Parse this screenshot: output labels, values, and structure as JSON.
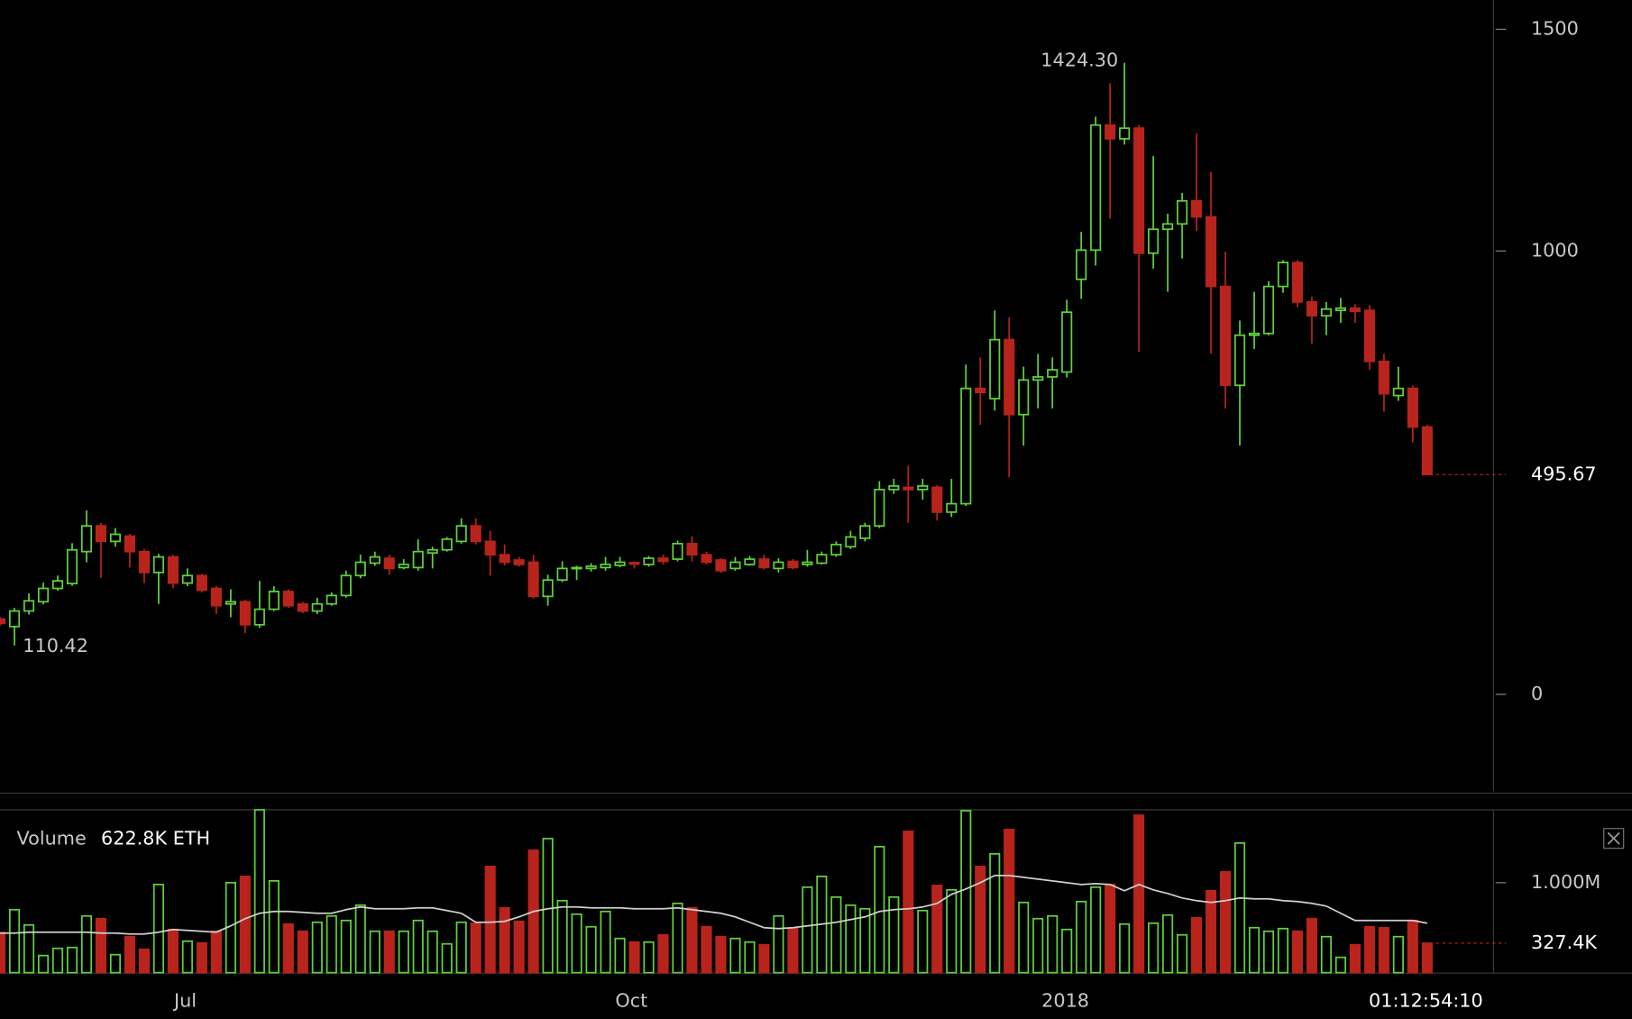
{
  "chart_data": {
    "type": "candlestick",
    "xlim": [
      0,
      103.6
    ],
    "xticks": [
      {
        "value": 12.85,
        "label": "Jul"
      },
      {
        "value": 43.8,
        "label": "Oct"
      },
      {
        "value": 73.9,
        "label": "2018"
      }
    ],
    "ylim": [
      -218,
      1566
    ],
    "yticks": [
      0,
      1000,
      1500
    ],
    "up_color": "#5fd33a",
    "down_color": "#b8241c",
    "open": [
      170,
      153,
      188,
      209,
      239,
      250,
      322,
      380,
      345,
      357,
      322,
      275,
      310,
      251,
      268,
      239,
      204,
      209,
      157,
      192,
      232,
      204,
      188,
      204,
      223,
      268,
      296,
      307,
      286,
      286,
      319,
      326,
      345,
      380,
      345,
      315,
      303,
      298,
      221,
      258,
      284,
      284,
      286,
      291,
      297,
      293,
      307,
      305,
      340,
      315,
      303,
      284,
      293,
      305,
      284,
      300,
      293,
      296,
      315,
      333,
      352,
      380,
      462,
      467,
      462,
      467,
      411,
      430,
      690,
      667,
      800,
      631,
      709,
      716,
      727,
      936,
      1002,
      1284,
      1253,
      1277,
      995,
      1049,
      1061,
      1113,
      1077,
      920,
      697,
      810,
      814,
      920,
      974,
      885,
      854,
      866,
      871,
      866,
      751,
      674,
      690,
      603
    ],
    "high": [
      175,
      195,
      228,
      252,
      268,
      341,
      415,
      387,
      375,
      362,
      328,
      317,
      315,
      284,
      272,
      244,
      237,
      213,
      256,
      244,
      237,
      209,
      218,
      230,
      279,
      315,
      322,
      315,
      305,
      350,
      333,
      355,
      397,
      397,
      369,
      338,
      310,
      315,
      270,
      300,
      290,
      296,
      310,
      310,
      300,
      312,
      315,
      347,
      357,
      322,
      307,
      310,
      312,
      315,
      307,
      305,
      326,
      322,
      345,
      369,
      387,
      481,
      486,
      516,
      486,
      472,
      486,
      744,
      760,
      866,
      850,
      739,
      768,
      760,
      890,
      1043,
      1303,
      1378,
      1424.3,
      1284,
      1214,
      1084,
      1131,
      1265,
      1178,
      998,
      843,
      908,
      932,
      979,
      979,
      897,
      885,
      894,
      880,
      878,
      768,
      739,
      697,
      608
    ],
    "low": [
      155,
      110.42,
      180,
      203,
      234,
      245,
      298,
      263,
      333,
      286,
      251,
      204,
      239,
      244,
      230,
      181,
      174,
      138,
      150,
      188,
      195,
      183,
      181,
      200,
      218,
      262,
      290,
      270,
      282,
      279,
      284,
      322,
      340,
      338,
      268,
      291,
      288,
      216,
      200,
      253,
      258,
      277,
      279,
      287,
      284,
      288,
      293,
      300,
      300,
      293,
      274,
      279,
      290,
      282,
      275,
      282,
      288,
      293,
      310,
      328,
      345,
      375,
      452,
      387,
      439,
      392,
      400,
      425,
      608,
      640,
      490,
      561,
      645,
      645,
      715,
      892,
      967,
      1073,
      1240,
      772,
      960,
      908,
      983,
      1045,
      768,
      645,
      561,
      779,
      810,
      906,
      873,
      791,
      810,
      838,
      838,
      732,
      638,
      662,
      568,
      495.67
    ],
    "close": [
      160,
      188,
      211,
      239,
      256,
      326,
      380,
      345,
      361,
      322,
      275,
      310,
      251,
      268,
      235,
      200,
      209,
      157,
      192,
      232,
      200,
      188,
      204,
      223,
      268,
      298,
      310,
      284,
      293,
      322,
      326,
      350,
      380,
      345,
      315,
      298,
      293,
      221,
      258,
      284,
      286,
      289,
      293,
      298,
      294,
      307,
      300,
      340,
      315,
      298,
      279,
      298,
      305,
      286,
      298,
      286,
      298,
      315,
      338,
      355,
      380,
      462,
      470,
      462,
      470,
      411,
      430,
      690,
      681,
      800,
      631,
      709,
      716,
      732,
      862,
      1002,
      1284,
      1253,
      1277,
      995,
      1049,
      1061,
      1113,
      1077,
      920,
      697,
      810,
      814,
      920,
      974,
      885,
      854,
      869,
      871,
      864,
      751,
      678,
      690,
      603,
      495.67
    ],
    "annotations": [
      {
        "value": 1424.3,
        "label": "1424.30"
      },
      {
        "value": 110.42,
        "label": "110.42"
      }
    ],
    "last_price": {
      "value": 495.67,
      "label": "495.67"
    },
    "volume_label": "Volume",
    "volume_readout": "622.8K ETH",
    "vlim": [
      0,
      1810000
    ],
    "vticks": [
      {
        "value": 1000000,
        "label": "1.000M"
      }
    ],
    "ma_color": "#cfcfcf",
    "volume": [
      445000,
      700000,
      530000,
      190000,
      270000,
      280000,
      630000,
      600000,
      200000,
      400000,
      260000,
      980000,
      480000,
      350000,
      330000,
      460000,
      1000000,
      1070000,
      1810000,
      1020000,
      540000,
      460000,
      560000,
      630000,
      580000,
      750000,
      460000,
      460000,
      460000,
      580000,
      460000,
      320000,
      560000,
      550000,
      1180000,
      720000,
      570000,
      1360000,
      1490000,
      800000,
      650000,
      510000,
      680000,
      380000,
      340000,
      340000,
      420000,
      770000,
      720000,
      510000,
      400000,
      380000,
      340000,
      310000,
      630000,
      490000,
      950000,
      1070000,
      840000,
      750000,
      710000,
      1400000,
      840000,
      1570000,
      690000,
      970000,
      920000,
      1800000,
      1180000,
      1320000,
      1590000,
      780000,
      600000,
      630000,
      480000,
      790000,
      950000,
      980000,
      540000,
      1750000,
      550000,
      640000,
      420000,
      610000,
      910000,
      1120000,
      1440000,
      500000,
      460000,
      490000,
      460000,
      600000,
      400000,
      170000,
      310000,
      510000,
      500000,
      400000,
      580000,
      327400
    ],
    "volume_ma": [
      440000,
      440000,
      450000,
      450000,
      450000,
      450000,
      450000,
      440000,
      440000,
      430000,
      430000,
      450000,
      480000,
      470000,
      460000,
      450000,
      520000,
      600000,
      660000,
      680000,
      680000,
      670000,
      660000,
      660000,
      700000,
      730000,
      710000,
      710000,
      710000,
      720000,
      720000,
      690000,
      660000,
      560000,
      560000,
      570000,
      620000,
      680000,
      710000,
      730000,
      730000,
      720000,
      720000,
      720000,
      710000,
      710000,
      710000,
      720000,
      700000,
      680000,
      660000,
      620000,
      560000,
      500000,
      490000,
      500000,
      520000,
      540000,
      560000,
      590000,
      620000,
      680000,
      700000,
      710000,
      730000,
      770000,
      870000,
      930000,
      1000000,
      1080000,
      1080000,
      1060000,
      1040000,
      1020000,
      1000000,
      980000,
      990000,
      980000,
      910000,
      980000,
      920000,
      880000,
      830000,
      800000,
      780000,
      800000,
      830000,
      820000,
      820000,
      800000,
      790000,
      770000,
      740000,
      660000,
      580000,
      580000,
      580000,
      580000,
      580000,
      550000
    ],
    "last_volume": {
      "value": 327400,
      "label": "327.4K"
    },
    "timer": "01:12:54:10"
  }
}
